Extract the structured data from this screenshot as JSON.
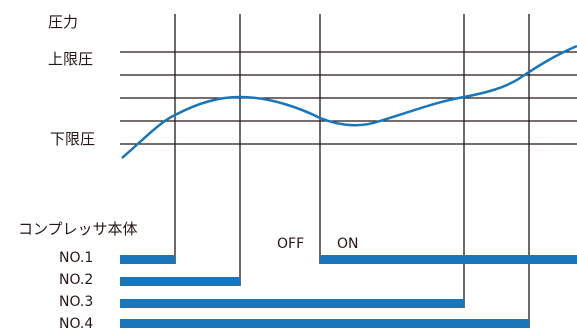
{
  "y_axis_label": "圧力",
  "upper_limit_label": "上限圧",
  "lower_limit_label": "下限圧",
  "unit_label": "コンプレッサ本体",
  "off_label": "OFF",
  "on_label": "ON",
  "compressors": [
    {
      "name": "NO.1"
    },
    {
      "name": "NO.2"
    },
    {
      "name": "NO.3"
    },
    {
      "name": "NO.4"
    }
  ],
  "colors": {
    "curve": "#1a76bb",
    "bar": "#1a76bb",
    "line": "#231815",
    "text": "#231815"
  }
}
